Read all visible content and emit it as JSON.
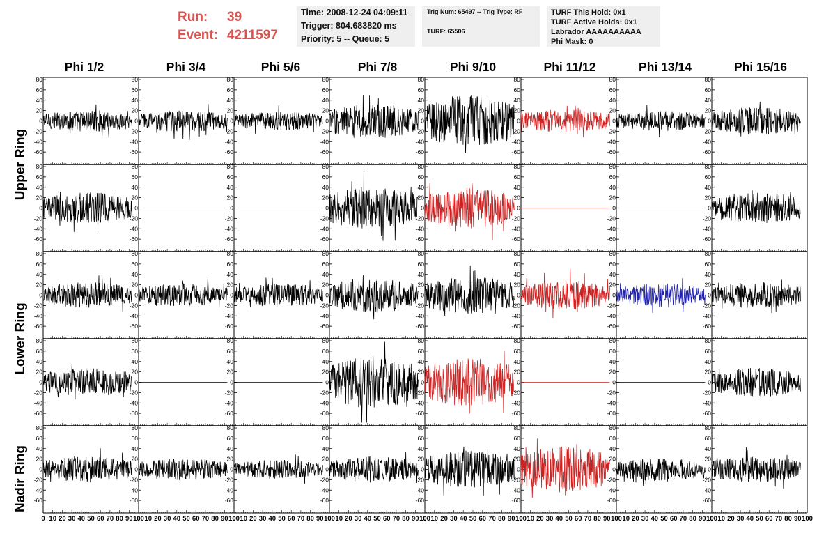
{
  "header": {
    "run_label": "Run:",
    "run_value": "39",
    "event_label": "Event:",
    "event_value": "4211597",
    "time_line": "Time: 2008-12-24 04:09:11",
    "trigger_line": "Trigger: 804.683820 ms",
    "priority_line": "Priority: 5 -- Queue: 5",
    "trig_line": "Trig Num: 65497 -- Trig Type: RF",
    "turf_line": "TURF: 65506",
    "turf_hold_line": "TURF This Hold: 0x1",
    "turf_active_line": "TURF Active Holds: 0x1",
    "labrador_line": "Labrador AAAAAAAAAA",
    "phi_mask_line": "Phi Mask: 0"
  },
  "colors": {
    "header_red": "#d9534f",
    "trace_black": "#000000",
    "trace_red": "#cc2222",
    "trace_blue": "#2222aa",
    "info_box_bg": "#efefef"
  },
  "chart_data": {
    "type": "line",
    "title": "",
    "columns": [
      "Phi 1/2",
      "Phi 3/4",
      "Phi 5/6",
      "Phi 7/8",
      "Phi 9/10",
      "Phi 11/12",
      "Phi 13/14",
      "Phi 15/16"
    ],
    "ring_labels": [
      "Upper Ring",
      "Lower Ring",
      "Nadir Ring"
    ],
    "panel_rows": 5,
    "row_ring_index": [
      0,
      0,
      1,
      1,
      2
    ],
    "xlim": [
      0,
      100
    ],
    "ylim": [
      -80,
      80
    ],
    "xticks": [
      0,
      10,
      20,
      30,
      40,
      50,
      60,
      70,
      80,
      90,
      100
    ],
    "yticks": [
      -60,
      -40,
      -20,
      0,
      20,
      40,
      60,
      80
    ],
    "trace_x_range": [
      0,
      93
    ],
    "grid": false,
    "panels": [
      {
        "row": 0,
        "col": 0,
        "color": "black",
        "amplitude": 15
      },
      {
        "row": 0,
        "col": 1,
        "color": "black",
        "amplitude": 15
      },
      {
        "row": 0,
        "col": 2,
        "color": "black",
        "amplitude": 13
      },
      {
        "row": 0,
        "col": 3,
        "color": "black",
        "amplitude": 24
      },
      {
        "row": 0,
        "col": 4,
        "color": "black",
        "amplitude": 36
      },
      {
        "row": 0,
        "col": 5,
        "color": "red",
        "amplitude": 16
      },
      {
        "row": 0,
        "col": 6,
        "color": "black",
        "amplitude": 14
      },
      {
        "row": 0,
        "col": 7,
        "color": "black",
        "amplitude": 19
      },
      {
        "row": 1,
        "col": 0,
        "color": "black",
        "amplitude": 22
      },
      {
        "row": 1,
        "col": 1,
        "color": "black",
        "amplitude": 0
      },
      {
        "row": 1,
        "col": 2,
        "color": "black",
        "amplitude": 0
      },
      {
        "row": 1,
        "col": 3,
        "color": "black",
        "amplitude": 30
      },
      {
        "row": 1,
        "col": 4,
        "color": "red",
        "amplitude": 28
      },
      {
        "row": 1,
        "col": 5,
        "color": "red",
        "amplitude": 0
      },
      {
        "row": 1,
        "col": 6,
        "color": "black",
        "amplitude": 0
      },
      {
        "row": 1,
        "col": 7,
        "color": "black",
        "amplitude": 22
      },
      {
        "row": 2,
        "col": 0,
        "color": "black",
        "amplitude": 18
      },
      {
        "row": 2,
        "col": 1,
        "color": "black",
        "amplitude": 16
      },
      {
        "row": 2,
        "col": 2,
        "color": "black",
        "amplitude": 16
      },
      {
        "row": 2,
        "col": 3,
        "color": "black",
        "amplitude": 24
      },
      {
        "row": 2,
        "col": 4,
        "color": "black",
        "amplitude": 26
      },
      {
        "row": 2,
        "col": 5,
        "color": "red",
        "amplitude": 20
      },
      {
        "row": 2,
        "col": 6,
        "color": "blue",
        "amplitude": 16
      },
      {
        "row": 2,
        "col": 7,
        "color": "black",
        "amplitude": 18
      },
      {
        "row": 3,
        "col": 0,
        "color": "black",
        "amplitude": 20
      },
      {
        "row": 3,
        "col": 1,
        "color": "black",
        "amplitude": 0
      },
      {
        "row": 3,
        "col": 2,
        "color": "black",
        "amplitude": 0
      },
      {
        "row": 3,
        "col": 3,
        "color": "black",
        "amplitude": 36
      },
      {
        "row": 3,
        "col": 4,
        "color": "red",
        "amplitude": 34
      },
      {
        "row": 3,
        "col": 5,
        "color": "red",
        "amplitude": 0
      },
      {
        "row": 3,
        "col": 6,
        "color": "black",
        "amplitude": 0
      },
      {
        "row": 3,
        "col": 7,
        "color": "black",
        "amplitude": 20
      },
      {
        "row": 4,
        "col": 0,
        "color": "black",
        "amplitude": 18
      },
      {
        "row": 4,
        "col": 1,
        "color": "black",
        "amplitude": 15
      },
      {
        "row": 4,
        "col": 2,
        "color": "black",
        "amplitude": 13
      },
      {
        "row": 4,
        "col": 3,
        "color": "black",
        "amplitude": 18
      },
      {
        "row": 4,
        "col": 4,
        "color": "black",
        "amplitude": 26
      },
      {
        "row": 4,
        "col": 5,
        "color": "red",
        "amplitude": 32
      },
      {
        "row": 4,
        "col": 6,
        "color": "black",
        "amplitude": 16
      },
      {
        "row": 4,
        "col": 7,
        "color": "black",
        "amplitude": 18
      }
    ]
  }
}
